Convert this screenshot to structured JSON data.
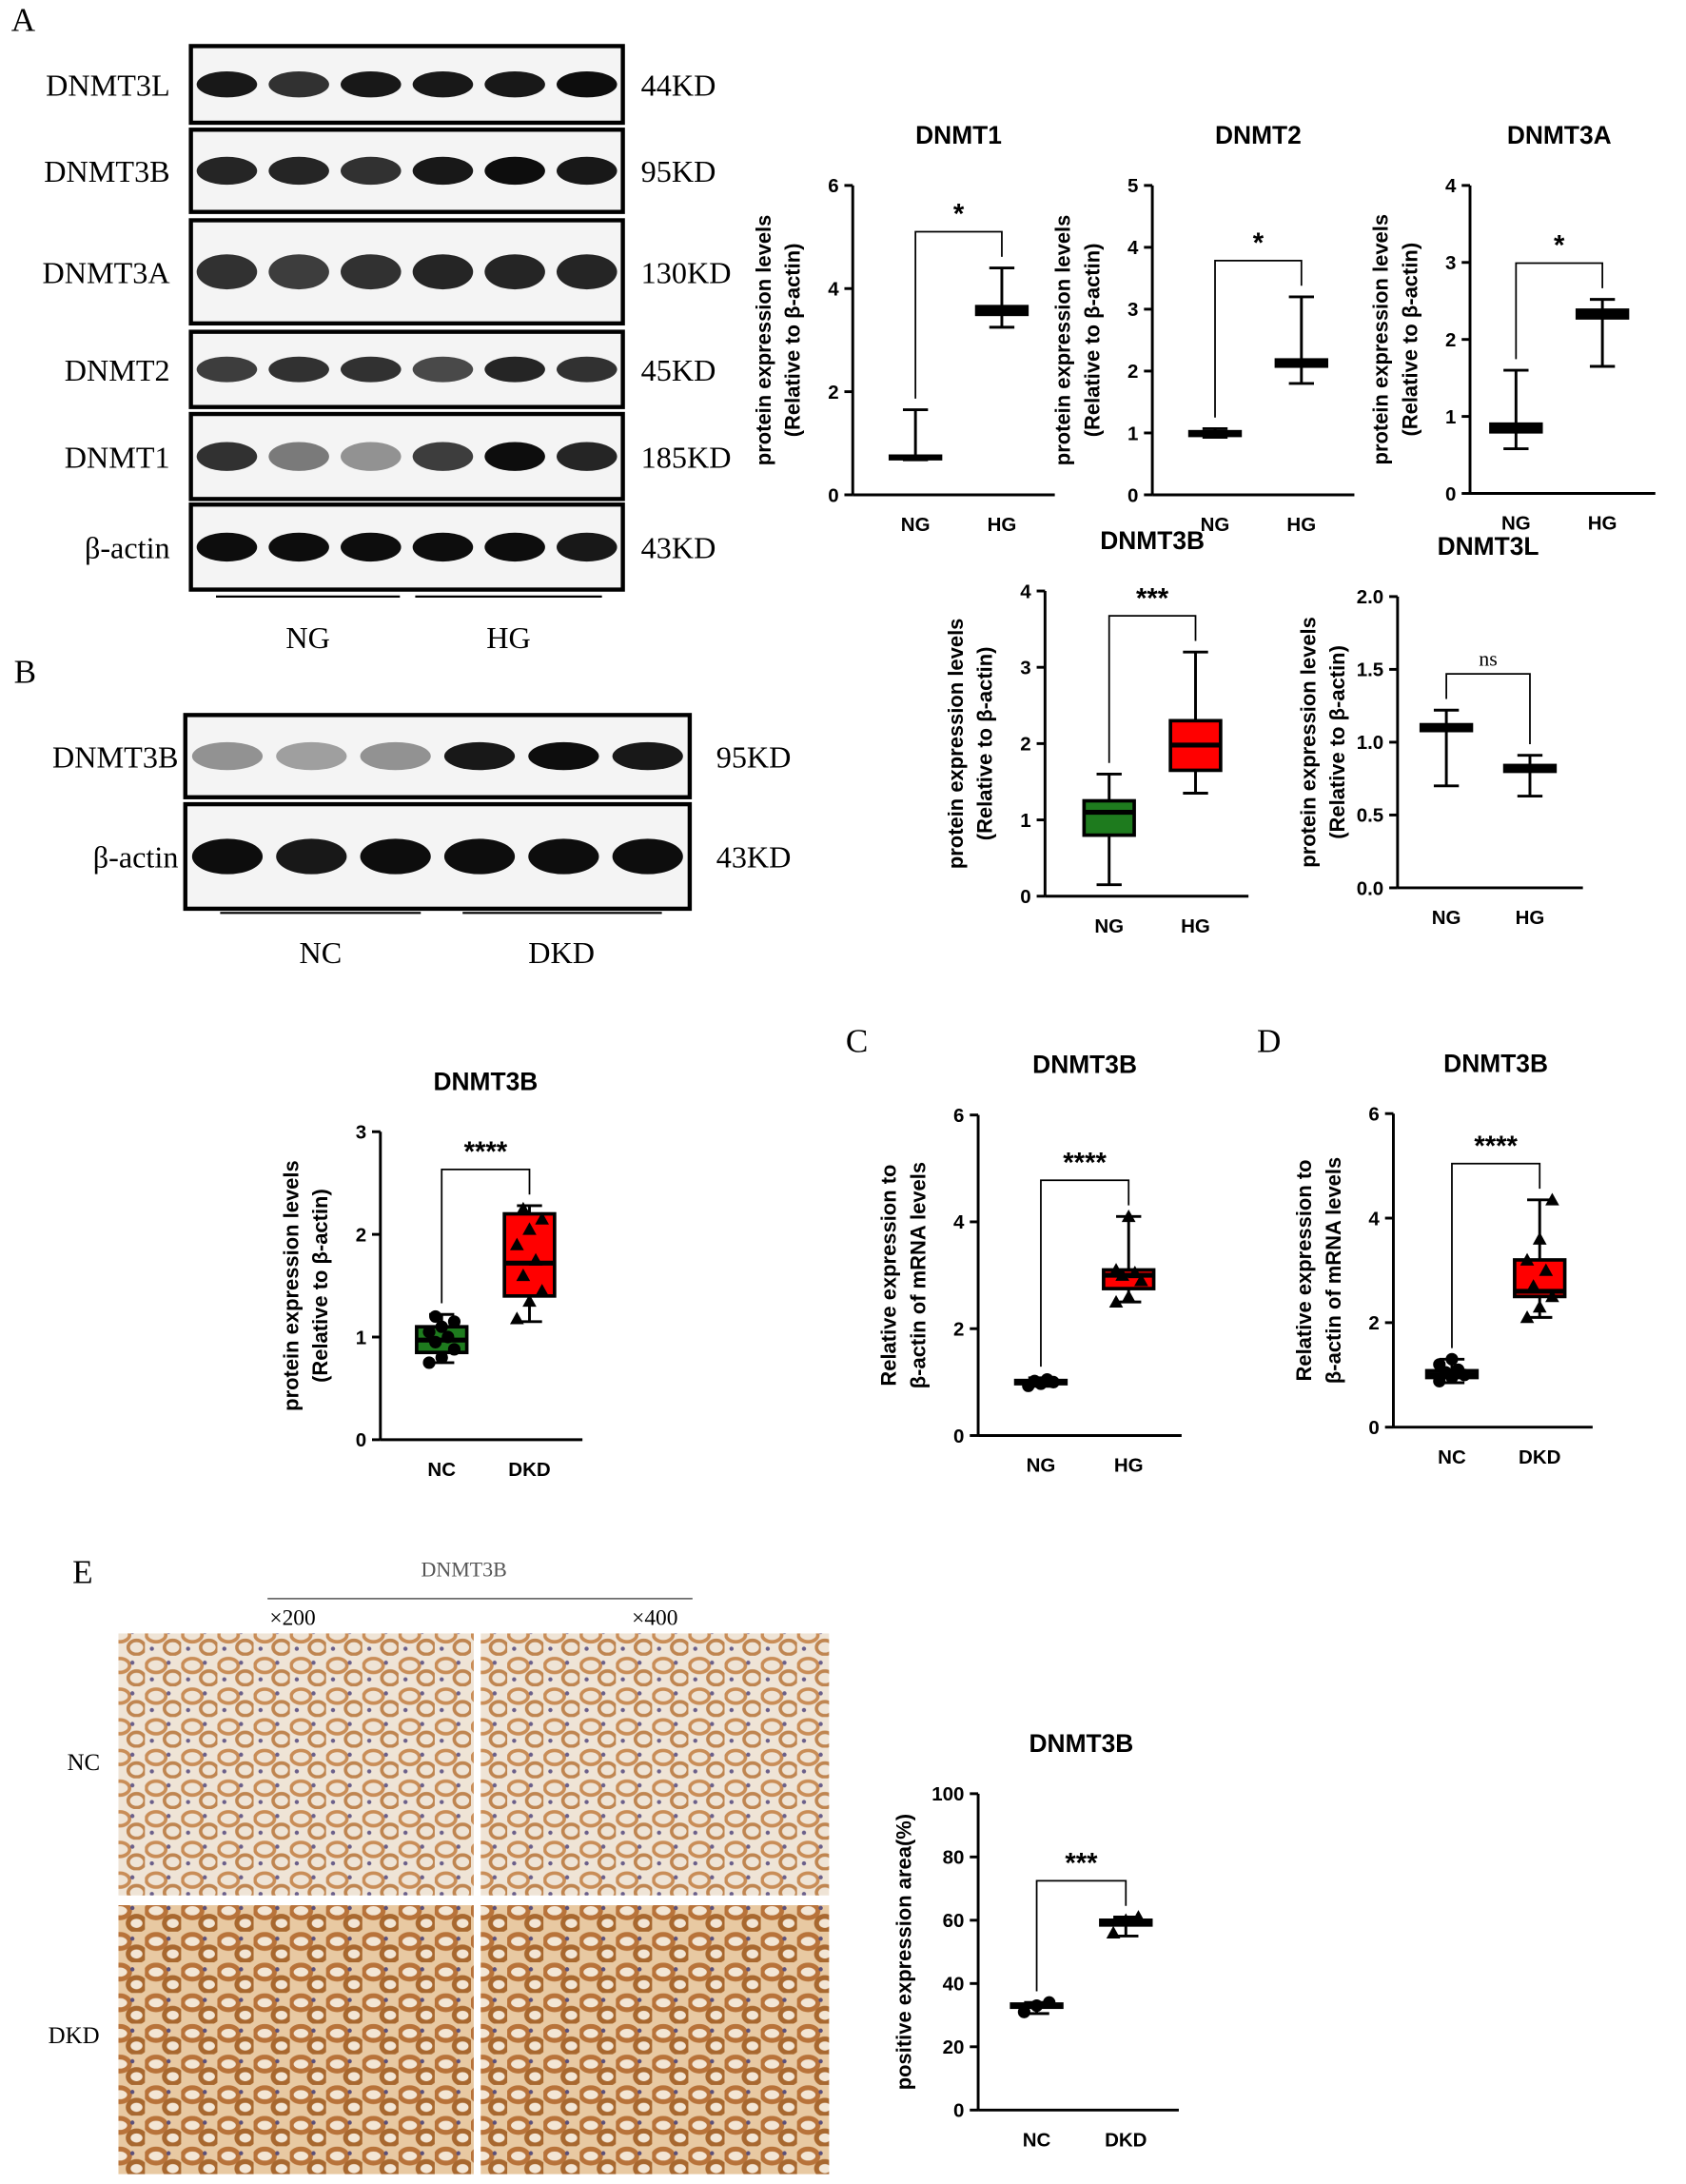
{
  "panel_labels": [
    "A",
    "B",
    "C",
    "D",
    "E"
  ],
  "blots": [
    {
      "rows": [
        {
          "label": "DNMT3L",
          "size": "44KD"
        },
        {
          "label": "DNMT3B",
          "size": "95KD"
        },
        {
          "label": "DNMT3A",
          "size": "130KD"
        },
        {
          "label": "DNMT2",
          "size": "45KD"
        },
        {
          "label": "DNMT1",
          "size": "185KD"
        },
        {
          "label": "β-actin",
          "size": "43KD"
        }
      ],
      "groups": [
        "NG",
        "HG"
      ]
    },
    {
      "rows": [
        {
          "label": "DNMT3B",
          "size": "95KD"
        },
        {
          "label": "β-actin",
          "size": "43KD"
        }
      ],
      "groups": [
        "NC",
        "DKD"
      ]
    }
  ],
  "ihc": {
    "title": "DNMT3B",
    "magnifications": [
      "×200",
      "×400"
    ],
    "rows": [
      "NC",
      "DKD"
    ]
  },
  "chart_data": [
    {
      "type": "box",
      "title": "DNMT1",
      "ylabel": [
        "protein expression levels",
        "(Relative to β-actin)"
      ],
      "ylim": [
        0,
        6
      ],
      "yticks": [
        0,
        2,
        4,
        6
      ],
      "significance": "*",
      "groups": [
        {
          "name": "NG",
          "color": "none",
          "min": 0.68,
          "q1": 0.7,
          "median": 0.72,
          "q3": 0.75,
          "max": 1.65
        },
        {
          "name": "HG",
          "color": "none",
          "min": 3.25,
          "q1": 3.5,
          "median": 3.58,
          "q3": 3.65,
          "max": 4.4
        }
      ]
    },
    {
      "type": "box",
      "title": "DNMT2",
      "ylabel": [
        "protein expression levels",
        "(Relative to β-actin)"
      ],
      "ylim": [
        0,
        5
      ],
      "yticks": [
        0,
        1,
        2,
        3,
        4,
        5
      ],
      "significance": "*",
      "groups": [
        {
          "name": "NG",
          "color": "none",
          "min": 0.93,
          "q1": 0.96,
          "median": 0.98,
          "q3": 1.02,
          "max": 1.07
        },
        {
          "name": "HG",
          "color": "none",
          "min": 1.8,
          "q1": 2.08,
          "median": 2.13,
          "q3": 2.18,
          "max": 3.2
        }
      ]
    },
    {
      "type": "box",
      "title": "DNMT3A",
      "ylabel": [
        "protein expression levels",
        "(Relative to β-actin)"
      ],
      "ylim": [
        0,
        4
      ],
      "yticks": [
        0,
        1,
        2,
        3,
        4
      ],
      "significance": "*",
      "groups": [
        {
          "name": "NG",
          "color": "none",
          "min": 0.58,
          "q1": 0.8,
          "median": 0.85,
          "q3": 0.9,
          "max": 1.6
        },
        {
          "name": "HG",
          "color": "none",
          "min": 1.65,
          "q1": 2.28,
          "median": 2.33,
          "q3": 2.38,
          "max": 2.52
        }
      ]
    },
    {
      "type": "box",
      "title": "DNMT3B",
      "ylabel": [
        "protein expression levels",
        "(Relative to β-actin)"
      ],
      "ylim": [
        0,
        4
      ],
      "yticks": [
        0,
        1,
        2,
        3,
        4
      ],
      "significance": "***",
      "groups": [
        {
          "name": "NG",
          "color": "#1e7b1e",
          "min": 0.15,
          "q1": 0.8,
          "median": 1.1,
          "q3": 1.25,
          "max": 1.6
        },
        {
          "name": "HG",
          "color": "#ff0000",
          "min": 1.35,
          "q1": 1.65,
          "median": 1.98,
          "q3": 2.3,
          "max": 3.2
        }
      ]
    },
    {
      "type": "box",
      "title": "DNMT3L",
      "ylabel": [
        "protein expression levels",
        "(Relative to β-actin)"
      ],
      "ylim": [
        0,
        2
      ],
      "yticks": [
        {
          "value": 0,
          "label": "0.0"
        },
        {
          "value": 0.5,
          "label": "0.5"
        },
        {
          "value": 1,
          "label": "1.0"
        },
        {
          "value": 1.5,
          "label": "1.5"
        },
        {
          "value": 2,
          "label": "2.0"
        }
      ],
      "significance": "ns",
      "groups": [
        {
          "name": "NG",
          "color": "none",
          "min": 0.7,
          "q1": 1.08,
          "median": 1.1,
          "q3": 1.12,
          "max": 1.22
        },
        {
          "name": "HG",
          "color": "none",
          "min": 0.63,
          "q1": 0.8,
          "median": 0.82,
          "q3": 0.84,
          "max": 0.91
        }
      ]
    },
    {
      "type": "box",
      "title": "DNMT3B",
      "ylabel": [
        "protein expression levels",
        "(Relative to β-actin)"
      ],
      "ylim": [
        0,
        3
      ],
      "yticks": [
        0,
        1,
        2,
        3
      ],
      "significance": "****",
      "groups": [
        {
          "name": "NC",
          "color": "#1e7b1e",
          "marker": "circle",
          "min": 0.75,
          "q1": 0.85,
          "median": 0.97,
          "q3": 1.1,
          "max": 1.22,
          "points": [
            0.75,
            0.8,
            0.88,
            0.95,
            1.0,
            1.05,
            1.1,
            1.15,
            1.2
          ]
        },
        {
          "name": "DKD",
          "color": "#ff0000",
          "marker": "triangle",
          "min": 1.15,
          "q1": 1.4,
          "median": 1.72,
          "q3": 2.2,
          "max": 2.28,
          "points": [
            1.18,
            1.35,
            1.45,
            1.6,
            1.75,
            1.9,
            2.05,
            2.15,
            2.25
          ]
        }
      ]
    },
    {
      "type": "box",
      "title": "DNMT3B",
      "ylabel": [
        "Relative expression to",
        "β-actin of mRNA levels"
      ],
      "ylim": [
        0,
        6
      ],
      "yticks": [
        0,
        2,
        4,
        6
      ],
      "significance": "****",
      "groups": [
        {
          "name": "NG",
          "color": "#111111",
          "marker": "circle",
          "min": 0.92,
          "q1": 0.97,
          "median": 1.0,
          "q3": 1.03,
          "max": 1.08,
          "points": [
            0.93,
            0.97,
            1.0,
            1.02,
            1.05
          ]
        },
        {
          "name": "HG",
          "color": "#ff0000",
          "marker": "triangle",
          "min": 2.5,
          "q1": 2.75,
          "median": 3.0,
          "q3": 3.1,
          "max": 4.1,
          "points": [
            2.5,
            2.6,
            2.9,
            3.0,
            3.05,
            3.1,
            4.1
          ]
        }
      ]
    },
    {
      "type": "box",
      "title": "DNMT3B",
      "ylabel": [
        "Relative expression to",
        "β-actin of mRNA levels"
      ],
      "ylim": [
        0,
        6
      ],
      "yticks": [
        0,
        2,
        4,
        6
      ],
      "significance": "****",
      "groups": [
        {
          "name": "NC",
          "color": "#111111",
          "marker": "circle",
          "min": 0.85,
          "q1": 0.95,
          "median": 1.0,
          "q3": 1.08,
          "max": 1.3,
          "points": [
            0.88,
            0.95,
            1.0,
            1.05,
            1.1,
            1.2,
            1.3
          ]
        },
        {
          "name": "DKD",
          "color": "#ff0000",
          "marker": "triangle",
          "min": 2.1,
          "q1": 2.5,
          "median": 2.6,
          "q3": 3.2,
          "max": 4.35,
          "points": [
            2.1,
            2.3,
            2.5,
            2.7,
            3.0,
            3.2,
            3.6,
            4.35
          ]
        }
      ]
    },
    {
      "type": "box",
      "title": "DNMT3B",
      "ylabel": [
        "positive expression area(%)"
      ],
      "ylim": [
        0,
        100
      ],
      "yticks": [
        0,
        20,
        40,
        60,
        80,
        100
      ],
      "significance": "***",
      "groups": [
        {
          "name": "NC",
          "color": "none",
          "marker": "circle",
          "min": 30.5,
          "q1": 32.5,
          "median": 33,
          "q3": 33.5,
          "max": 34,
          "points": [
            31,
            33,
            34
          ]
        },
        {
          "name": "DKD",
          "color": "none",
          "marker": "triangle",
          "min": 55,
          "q1": 58.5,
          "median": 59.5,
          "q3": 60,
          "max": 61,
          "points": [
            56,
            60,
            61
          ]
        }
      ]
    }
  ]
}
